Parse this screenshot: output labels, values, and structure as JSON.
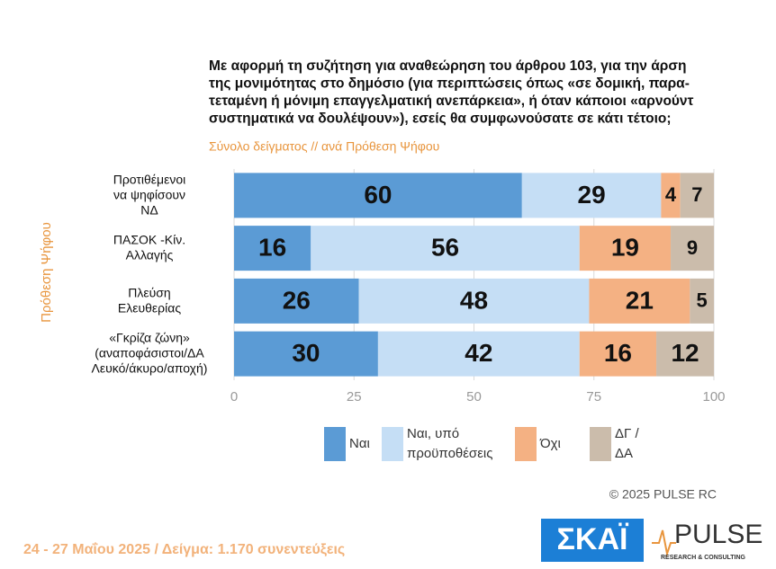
{
  "chart_data": {
    "type": "stacked_barh",
    "title": [
      "Με αφορμή τη συζήτηση για αναθεώρηση του άρθρου 103, για την άρση",
      "της μονιμότητας στο δημόσιο (για περιπτώσεις όπως «σε δομική, παρα-",
      "τεταμένη ή μόνιμη επαγγελματική ανεπάρκεια», ή όταν κάποιοι «αρνούντ",
      "συστηματικά να δουλέψουν»), εσείς θα συμφωνούσατε σε κάτι τέτοιο;"
    ],
    "subtitle": "Σύνολο δείγματος // ανά Πρόθεση Ψήφου",
    "y_label": "Πρόθεση Ψήφου",
    "categories": [
      "Προτιθέμενοι\nνα ψηφίσουν\nΝΔ",
      "ΠΑΣΟΚ -Κίν.\nΑλλαγής",
      "Πλεύση\nΕλευθερίας",
      "«Γκρίζα ζώνη»\n(αναποφάσιστοι/ΔΑ\nΛευκό/άκυρο/αποχή)"
    ],
    "series": [
      {
        "name": "Ναι",
        "color": "#5b9bd5",
        "values": [
          60,
          16,
          26,
          30
        ]
      },
      {
        "name": "Ναι, υπό\nπροϋποθέσεις",
        "color": "#c5def5",
        "values": [
          29,
          56,
          48,
          42
        ]
      },
      {
        "name": "Όχι",
        "color": "#f4b183",
        "values": [
          4,
          19,
          21,
          16
        ]
      },
      {
        "name": "ΔΓ /\nΔΑ",
        "color": "#cbbcab",
        "values": [
          7,
          9,
          5,
          12
        ]
      }
    ],
    "xlim": [
      0,
      100
    ],
    "xticks": [
      0,
      25,
      50,
      75,
      100
    ],
    "grid": true
  },
  "footer": {
    "copyright": "© 2025  PULSE RC",
    "fieldwork": "24 - 27 Μαΐου 2025  /  Δείγμα:  1.170 συνεντεύξεις"
  },
  "logos": {
    "skai": "ΣΚΑΪ",
    "pulse": "PULSE",
    "pulse_sub": "RESEARCH & CONSULTING"
  }
}
